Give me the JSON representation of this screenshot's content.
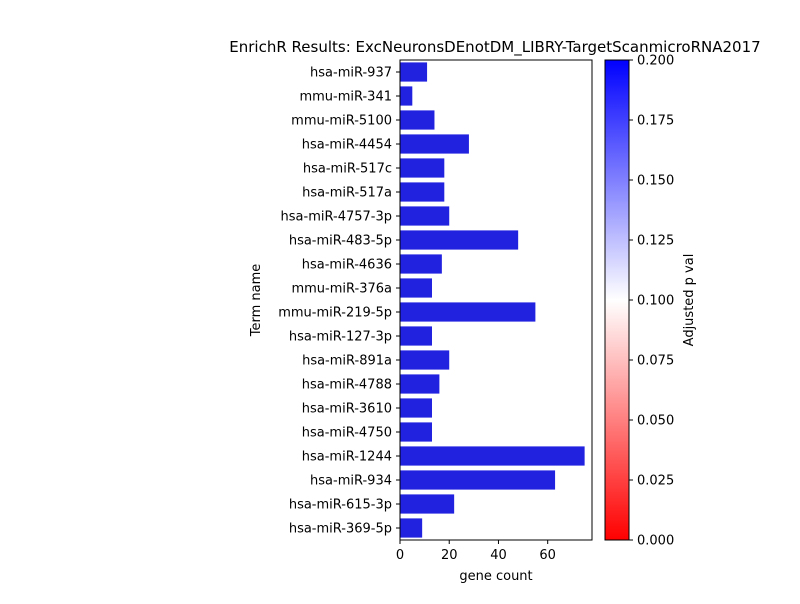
{
  "chart_data": {
    "type": "bar",
    "orientation": "horizontal",
    "title": "EnrichR Results: ExcNeuronsDEnotDM_LIBRY-TargetScanmicroRNA2017",
    "xlabel": "gene count",
    "ylabel": "Term name",
    "xlim": [
      0,
      78
    ],
    "xticks": [
      0,
      20,
      40,
      60
    ],
    "categories": [
      "hsa-miR-937",
      "mmu-miR-341",
      "mmu-miR-5100",
      "hsa-miR-4454",
      "hsa-miR-517c",
      "hsa-miR-517a",
      "hsa-miR-4757-3p",
      "hsa-miR-483-5p",
      "hsa-miR-4636",
      "mmu-miR-376a",
      "mmu-miR-219-5p",
      "hsa-miR-127-3p",
      "hsa-miR-891a",
      "hsa-miR-4788",
      "hsa-miR-3610",
      "hsa-miR-4750",
      "hsa-miR-1244",
      "hsa-miR-934",
      "hsa-miR-615-3p",
      "hsa-miR-369-5p"
    ],
    "values": [
      11,
      5,
      14,
      28,
      18,
      18,
      20,
      48,
      17,
      13,
      55,
      13,
      20,
      16,
      13,
      13,
      75,
      63,
      22,
      9
    ],
    "bar_color": "#2121e0",
    "grid": false,
    "colorbar": {
      "label": "Adjusted p val",
      "range": [
        0,
        0.2
      ],
      "ticks": [
        "0.000",
        "0.025",
        "0.050",
        "0.075",
        "0.100",
        "0.125",
        "0.150",
        "0.175",
        "0.200"
      ],
      "colors": [
        "#ff0000",
        "#ffffff",
        "#0000ff"
      ]
    }
  }
}
